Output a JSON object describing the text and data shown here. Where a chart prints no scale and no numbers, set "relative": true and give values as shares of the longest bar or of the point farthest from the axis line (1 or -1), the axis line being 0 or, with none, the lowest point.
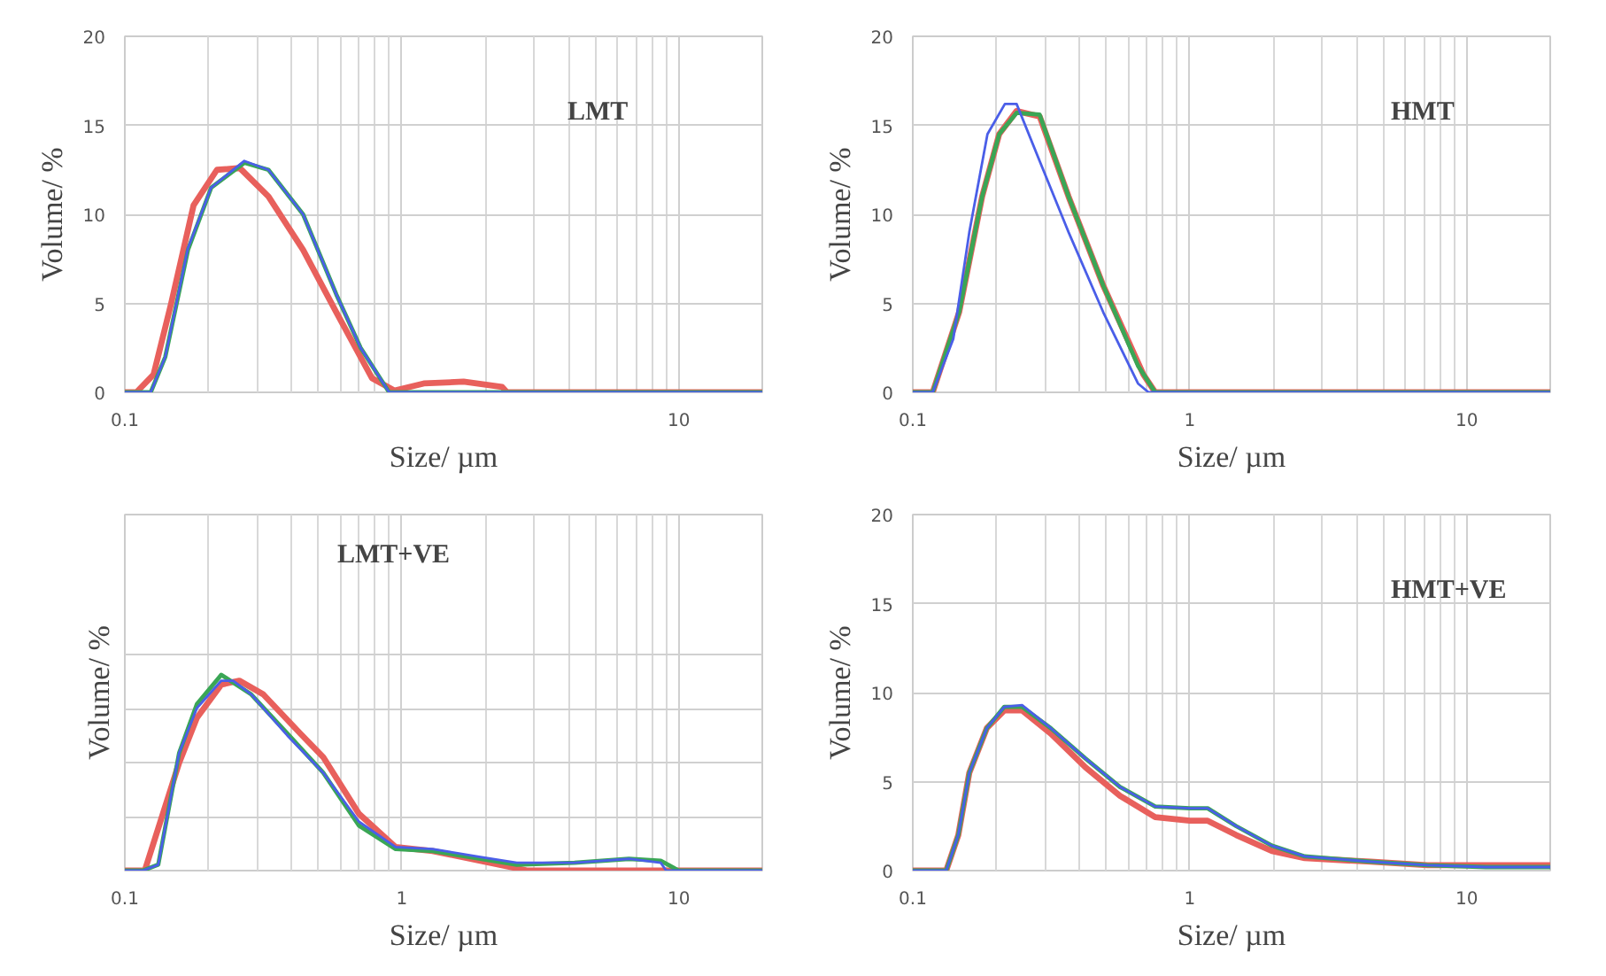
{
  "chart_data": [
    {
      "type": "line",
      "xlabel": "Size/ µm",
      "ylabel": "Volume/ %",
      "annotations": [
        "LMT"
      ],
      "log": "x",
      "grid": true,
      "xlim": [
        0.1,
        20
      ],
      "xticks": [
        0.1,
        {
          "value": 1,
          "label": null
        },
        10
      ],
      "ylim": [
        0,
        20
      ],
      "yticks": [
        0,
        5,
        10,
        15,
        20
      ],
      "series": [
        {
          "color": "#e8605c",
          "x": [
            0.1,
            0.11,
            0.127,
            0.147,
            0.177,
            0.215,
            0.26,
            0.33,
            0.44,
            0.58,
            0.78,
            0.94,
            1.2,
            1.67,
            2.3,
            2.4,
            20
          ],
          "values": [
            0,
            0,
            1,
            5,
            10.5,
            12.5,
            12.6,
            11,
            8,
            4.5,
            0.8,
            0.1,
            0.5,
            0.6,
            0.3,
            0,
            0
          ]
        },
        {
          "color": "#3aa655",
          "x": [
            0.1,
            0.124,
            0.14,
            0.169,
            0.205,
            0.27,
            0.33,
            0.44,
            0.58,
            0.71,
            0.9,
            20
          ],
          "values": [
            0,
            0,
            2,
            8,
            11.5,
            12.9,
            12.5,
            10,
            5.5,
            2.5,
            0,
            0
          ]
        },
        {
          "color": "#4a5ee8",
          "x": [
            0.1,
            0.124,
            0.14,
            0.169,
            0.205,
            0.27,
            0.33,
            0.44,
            0.58,
            0.71,
            0.9,
            20
          ],
          "values": [
            0,
            0,
            2,
            8.1,
            11.5,
            13,
            12.5,
            10,
            5.5,
            2.5,
            0,
            0
          ]
        }
      ]
    },
    {
      "type": "line",
      "xlabel": "Size/ µm",
      "ylabel": "Volume/ %",
      "annotations": [
        "HMT"
      ],
      "log": "x",
      "grid": true,
      "xlim": [
        0.1,
        20
      ],
      "xticks": [
        0.1,
        1,
        10
      ],
      "ylim": [
        0,
        20
      ],
      "yticks": [
        0,
        5,
        10,
        15,
        20
      ],
      "series": [
        {
          "color": "#e8605c",
          "x": [
            0.1,
            0.118,
            0.147,
            0.178,
            0.205,
            0.237,
            0.287,
            0.365,
            0.487,
            0.68,
            0.75,
            20
          ],
          "values": [
            0,
            0,
            4.5,
            11,
            14.5,
            15.8,
            15.5,
            11,
            6,
            1,
            0,
            0
          ]
        },
        {
          "color": "#3aa655",
          "x": [
            0.1,
            0.118,
            0.147,
            0.178,
            0.205,
            0.237,
            0.287,
            0.365,
            0.487,
            0.65,
            0.75,
            20
          ],
          "values": [
            0,
            0,
            4.5,
            11,
            14.5,
            15.7,
            15.6,
            11,
            6,
            1.5,
            0,
            0
          ]
        },
        {
          "color": "#4a5ee8",
          "x": [
            0.1,
            0.118,
            0.14,
            0.16,
            0.186,
            0.215,
            0.237,
            0.287,
            0.365,
            0.487,
            0.65,
            0.71,
            20
          ],
          "values": [
            0,
            0,
            3,
            9,
            14.5,
            16.2,
            16.2,
            13,
            9,
            4.5,
            0.5,
            0,
            0
          ]
        }
      ]
    },
    {
      "type": "line",
      "xlabel": "Size/ µm",
      "ylabel": "Volume/ %",
      "annotations": [
        "LMT+VE"
      ],
      "log": "x",
      "grid": true,
      "relative": true,
      "xlim": [
        0.1,
        20
      ],
      "xticks": [
        0.1,
        1,
        10
      ],
      "series": [
        {
          "color": "#e8605c",
          "x": [
            0.1,
            0.118,
            0.157,
            0.182,
            0.223,
            0.259,
            0.316,
            0.43,
            0.52,
            0.7,
            0.95,
            1.29,
            1.92,
            2.85,
            20
          ],
          "values": [
            0,
            0,
            0.55,
            0.78,
            0.95,
            0.97,
            0.9,
            0.7,
            0.58,
            0.29,
            0.12,
            0.1,
            0.05,
            0,
            0
          ]
        },
        {
          "color": "#3aa655",
          "x": [
            0.1,
            0.116,
            0.132,
            0.157,
            0.182,
            0.223,
            0.286,
            0.386,
            0.52,
            0.7,
            0.95,
            1.29,
            1.92,
            2.6,
            4.2,
            6.6,
            8.6,
            10,
            20
          ],
          "values": [
            0,
            0,
            0.03,
            0.6,
            0.85,
            1,
            0.9,
            0.7,
            0.5,
            0.23,
            0.11,
            0.1,
            0.06,
            0.03,
            0.04,
            0.06,
            0.05,
            0,
            0
          ]
        },
        {
          "color": "#4a5ee8",
          "x": [
            0.1,
            0.116,
            0.132,
            0.157,
            0.182,
            0.223,
            0.246,
            0.286,
            0.386,
            0.52,
            0.7,
            0.95,
            1.29,
            1.92,
            2.6,
            4.2,
            6.6,
            8.6,
            9.0,
            20
          ],
          "values": [
            0,
            0,
            0.03,
            0.6,
            0.83,
            0.97,
            0.97,
            0.9,
            0.69,
            0.5,
            0.25,
            0.12,
            0.11,
            0.07,
            0.04,
            0.04,
            0.06,
            0.04,
            0,
            0
          ]
        }
      ]
    },
    {
      "type": "line",
      "xlabel": "Size/ µm",
      "ylabel": "Volume/ %",
      "annotations": [
        "HMT+VE"
      ],
      "log": "x",
      "grid": true,
      "xlim": [
        0.1,
        20
      ],
      "xticks": [
        0.1,
        1,
        10
      ],
      "ylim": [
        0,
        20
      ],
      "yticks": [
        0,
        5,
        10,
        15,
        20
      ],
      "series": [
        {
          "color": "#e8605c",
          "x": [
            0.1,
            0.132,
            0.146,
            0.16,
            0.185,
            0.214,
            0.248,
            0.315,
            0.42,
            0.56,
            0.75,
            1,
            1.16,
            1.47,
            1.98,
            2.6,
            4.5,
            7.2,
            11.7,
            20
          ],
          "values": [
            0,
            0,
            2,
            5.5,
            8,
            9,
            9,
            7.7,
            5.8,
            4.2,
            3,
            2.8,
            2.8,
            2,
            1.1,
            0.7,
            0.5,
            0.3,
            0.3,
            0.3
          ]
        },
        {
          "color": "#3aa655",
          "x": [
            0.1,
            0.132,
            0.146,
            0.16,
            0.185,
            0.214,
            0.248,
            0.315,
            0.42,
            0.56,
            0.75,
            1,
            1.16,
            1.47,
            1.98,
            2.6,
            4.5,
            7.2,
            11.7,
            20
          ],
          "values": [
            0,
            0,
            2,
            5.5,
            8,
            9.2,
            9.2,
            8,
            6.3,
            4.7,
            3.6,
            3.5,
            3.5,
            2.5,
            1.4,
            0.8,
            0.5,
            0.3,
            0.2,
            0.2
          ]
        },
        {
          "color": "#4a5ee8",
          "x": [
            0.1,
            0.132,
            0.146,
            0.16,
            0.185,
            0.214,
            0.248,
            0.315,
            0.42,
            0.56,
            0.75,
            1,
            1.16,
            1.47,
            1.98,
            2.6,
            4.5,
            7.2,
            11.7,
            20
          ],
          "values": [
            0,
            0,
            2,
            5.5,
            8,
            9.2,
            9.3,
            8,
            6.3,
            4.7,
            3.6,
            3.5,
            3.5,
            2.5,
            1.4,
            0.8,
            0.5,
            0.3,
            0.2,
            0.2
          ]
        }
      ]
    }
  ]
}
